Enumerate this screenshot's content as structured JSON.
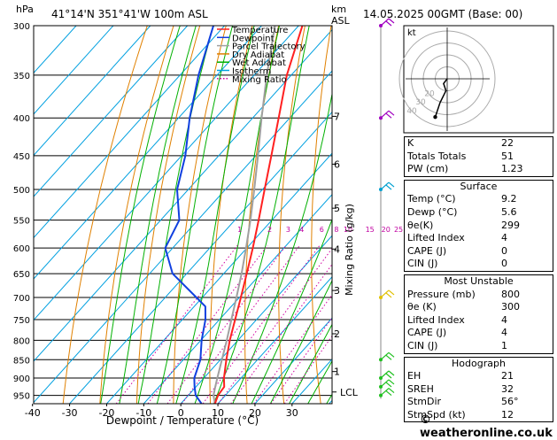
{
  "header": {
    "hpa_label": "hPa",
    "location": "41°14'N  351°41'W  100m  ASL",
    "km_label": "km",
    "asl_label": "ASL",
    "datetime": "14.05.2025  00GMT  (Base: 00)"
  },
  "legend": [
    {
      "label": "Temperature",
      "color": "#ff2020",
      "style": "solid"
    },
    {
      "label": "Dewpoint",
      "color": "#1040e0",
      "style": "solid"
    },
    {
      "label": "Parcel Trajectory",
      "color": "#a0a0a0",
      "style": "solid"
    },
    {
      "label": "Dry Adiabat",
      "color": "#e08000",
      "style": "solid"
    },
    {
      "label": "Wet Adiabat",
      "color": "#00b000",
      "style": "solid"
    },
    {
      "label": "Isotherm",
      "color": "#00a0e0",
      "style": "solid"
    },
    {
      "label": "Mixing Ratio",
      "color": "#d000a0",
      "style": "dotted"
    }
  ],
  "chart_data": {
    "type": "line",
    "title": "",
    "xlabel": "Dewpoint / Temperature (°C)",
    "ylabel_right": "Mixing Ratio (g/kg)",
    "x_ticks": [
      -40,
      -30,
      -20,
      -10,
      0,
      10,
      20,
      30
    ],
    "xlim": [
      -40,
      40
    ],
    "pressure_levels": [
      300,
      350,
      400,
      450,
      500,
      550,
      600,
      650,
      700,
      750,
      800,
      850,
      900,
      950
    ],
    "ylim_hpa": [
      300,
      975
    ],
    "y_scale": "log",
    "skew": "45 degrees",
    "km_ticks": [
      {
        "km": "1",
        "p": 882
      },
      {
        "km": "2",
        "p": 784
      },
      {
        "km": "3",
        "p": 685
      },
      {
        "km": "4",
        "p": 602
      },
      {
        "km": "5",
        "p": 530
      },
      {
        "km": "6",
        "p": 462
      },
      {
        "km": "7",
        "p": 398
      }
    ],
    "lcl": {
      "label": "LCL",
      "p": 940
    },
    "mixing_ratio_labels": [
      "1",
      "2",
      "3",
      "4",
      "6",
      "8",
      "10",
      "15",
      "20",
      "25"
    ],
    "mixing_ratio_label_p": 590,
    "series": [
      {
        "name": "Temperature",
        "p": [
          975,
          950,
          925,
          900,
          850,
          800,
          750,
          700,
          650,
          600,
          550,
          500,
          450,
          400,
          350,
          300
        ],
        "t": [
          9.2,
          8.0,
          7.6,
          5.4,
          1.6,
          -2.2,
          -5.8,
          -9.6,
          -13.8,
          -18.4,
          -23.6,
          -29.4,
          -35.8,
          -43.0,
          -51.2,
          -59.0
        ]
      },
      {
        "name": "Dewpoint",
        "p": [
          975,
          950,
          925,
          900,
          850,
          800,
          750,
          720,
          700,
          650,
          600,
          550,
          500,
          450,
          400,
          350,
          300
        ],
        "t": [
          5.6,
          2.0,
          -0.4,
          -2.6,
          -5.4,
          -9.8,
          -13.8,
          -17.0,
          -21.6,
          -33.8,
          -42.0,
          -45.0,
          -53.0,
          -59.0,
          -67.0,
          -75.0,
          -83.0
        ]
      },
      {
        "name": "Parcel Trajectory",
        "p": [
          975,
          950,
          925,
          900,
          850,
          800,
          750,
          700,
          650,
          600,
          550,
          500,
          450,
          400,
          350,
          300
        ],
        "t": [
          9.2,
          6.8,
          5.2,
          3.6,
          0.4,
          -3.0,
          -6.8,
          -10.8,
          -15.2,
          -20.2,
          -25.8,
          -32.2,
          -39.4,
          -47.6,
          -56.6,
          -66.4
        ]
      }
    ]
  },
  "hodograph": {
    "unit_label": "kt",
    "ring_labels": [
      "40",
      "30",
      "20"
    ],
    "points": [
      [
        0,
        0
      ],
      [
        -3,
        -4
      ],
      [
        -2,
        -7
      ],
      [
        -1,
        -10
      ],
      [
        -6,
        -20
      ],
      [
        -10,
        -32
      ]
    ]
  },
  "indices": {
    "rows": [
      {
        "label": "K",
        "value": "22"
      },
      {
        "label": "Totals Totals",
        "value": "51"
      },
      {
        "label": "PW (cm)",
        "value": "1.23"
      }
    ]
  },
  "surface": {
    "title": "Surface",
    "rows": [
      {
        "label": "Temp (°C)",
        "value": "9.2"
      },
      {
        "label": "Dewp (°C)",
        "value": "5.6"
      },
      {
        "label": "θe(K)",
        "value": "299"
      },
      {
        "label": "Lifted Index",
        "value": "4"
      },
      {
        "label": "CAPE (J)",
        "value": "0"
      },
      {
        "label": "CIN (J)",
        "value": "0"
      }
    ]
  },
  "most_unstable": {
    "title": "Most Unstable",
    "rows": [
      {
        "label": "Pressure (mb)",
        "value": "800"
      },
      {
        "label": "θe (K)",
        "value": "300"
      },
      {
        "label": "Lifted Index",
        "value": "4"
      },
      {
        "label": "CAPE (J)",
        "value": "4"
      },
      {
        "label": "CIN (J)",
        "value": "1"
      }
    ]
  },
  "hodo_table": {
    "title": "Hodograph",
    "rows": [
      {
        "label": "EH",
        "value": "21"
      },
      {
        "label": "SREH",
        "value": "32"
      },
      {
        "label": "StmDir",
        "value": "56°"
      },
      {
        "label": "StmSpd (kt)",
        "value": "12"
      }
    ]
  },
  "footer": {
    "credit": "© weatheronline.co.uk"
  },
  "wind_barbs": [
    {
      "p": 300,
      "color": "#a000c0"
    },
    {
      "p": 400,
      "color": "#a000c0"
    },
    {
      "p": 500,
      "color": "#00a0d0"
    },
    {
      "p": 700,
      "color": "#e0c000"
    },
    {
      "p": 850,
      "color": "#20c020"
    },
    {
      "p": 900,
      "color": "#20c020"
    },
    {
      "p": 925,
      "color": "#20c020"
    },
    {
      "p": 950,
      "color": "#20c020"
    }
  ]
}
